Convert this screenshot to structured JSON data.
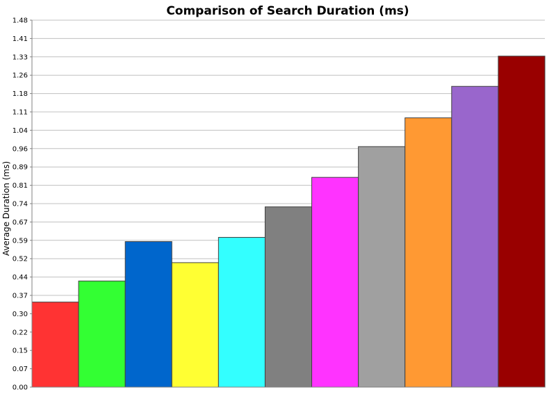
{
  "chart_data": {
    "type": "bar",
    "title": "Comparison of Search Duration (ms)",
    "xlabel": "",
    "ylabel": "Average Duration (ms)",
    "ylim": [
      0,
      1.48
    ],
    "y_ticks": [
      "0.00",
      "0.07",
      "0.15",
      "0.22",
      "0.30",
      "0.37",
      "0.44",
      "0.52",
      "0.59",
      "0.67",
      "0.74",
      "0.81",
      "0.89",
      "0.96",
      "1.04",
      "1.11",
      "1.18",
      "1.26",
      "1.33",
      "1.41",
      "1.48"
    ],
    "grid": true,
    "legend": "none",
    "bars": [
      {
        "value": 0.343,
        "color": "#FF3333"
      },
      {
        "value": 0.428,
        "color": "#33FF33"
      },
      {
        "value": 0.587,
        "color": "#0066CC"
      },
      {
        "value": 0.502,
        "color": "#FFFF33"
      },
      {
        "value": 0.604,
        "color": "#33FFFF"
      },
      {
        "value": 0.727,
        "color": "#808080"
      },
      {
        "value": 0.846,
        "color": "#FF33FF"
      },
      {
        "value": 0.97,
        "color": "#A0A0A0"
      },
      {
        "value": 1.086,
        "color": "#FF9933"
      },
      {
        "value": 1.213,
        "color": "#9966CC"
      },
      {
        "value": 1.335,
        "color": "#990000"
      }
    ]
  }
}
